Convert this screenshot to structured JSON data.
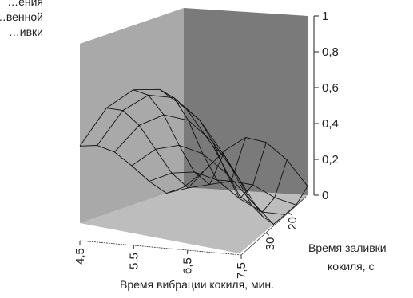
{
  "chart_data": {
    "type": "surface",
    "title": "",
    "zlabel_lines": [
      "…ения",
      "…венной",
      "…ивки"
    ],
    "xlabel": "Время вибрации кокиля, мин.",
    "ylabel_lines": [
      "Время заливки",
      "кокиля, с"
    ],
    "x_ticks": [
      "4,5",
      "5,5",
      "6,5",
      "7,5"
    ],
    "y_ticks": [
      "20",
      "30"
    ],
    "z_ticks": [
      "0",
      "0,2",
      "0,4",
      "0,6",
      "0,8",
      "1"
    ],
    "zlim": [
      0,
      1
    ],
    "x": [
      4.5,
      5.0,
      5.5,
      6.0,
      6.5,
      7.0,
      7.5
    ],
    "y": [
      40,
      35,
      30,
      25,
      20,
      15,
      10
    ],
    "z": [
      [
        0.43,
        0.67,
        0.8,
        0.83,
        0.75,
        0.57,
        0.32
      ],
      [
        0.4,
        0.62,
        0.73,
        0.74,
        0.64,
        0.46,
        0.22
      ],
      [
        0.33,
        0.5,
        0.58,
        0.57,
        0.47,
        0.3,
        0.1
      ],
      [
        0.22,
        0.33,
        0.37,
        0.34,
        0.25,
        0.12,
        0.0
      ],
      [
        0.1,
        0.16,
        0.18,
        0.15,
        0.06,
        0.0,
        0.0
      ],
      [
        0.0,
        0.04,
        0.07,
        0.1,
        0.09,
        0.03,
        0.0
      ],
      [
        0.0,
        0.1,
        0.22,
        0.3,
        0.28,
        0.19,
        0.05
      ]
    ],
    "grid": true,
    "colors": {
      "floor": "#bdbdbd",
      "left_wall": "#a9a9a9",
      "right_wall": "#7a7a7a",
      "mesh": "#111111"
    }
  }
}
